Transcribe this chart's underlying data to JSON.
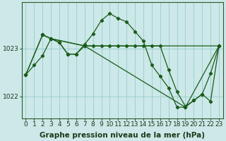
{
  "background_color": "#cce8e8",
  "grid_color": "#99cccc",
  "line_color": "#1a5c1a",
  "xlabel": "Graphe pression niveau de la mer (hPa)",
  "xlabel_fontsize": 7.5,
  "tick_fontsize": 6.5,
  "ylabel_ticks": [
    1022,
    1023
  ],
  "xlim": [
    -0.5,
    23.5
  ],
  "ylim": [
    1021.55,
    1023.95
  ],
  "xticks": [
    0,
    1,
    2,
    3,
    4,
    5,
    6,
    7,
    8,
    9,
    10,
    11,
    12,
    13,
    14,
    15,
    16,
    17,
    18,
    19,
    20,
    21,
    22,
    23
  ],
  "line1_x": [
    0,
    1,
    2,
    3,
    4,
    5,
    6,
    7,
    8,
    9,
    10,
    11,
    12,
    13,
    14,
    15,
    16,
    17,
    18,
    19,
    20,
    21,
    22,
    23
  ],
  "line1_y": [
    1022.45,
    1022.65,
    1022.85,
    1023.2,
    1023.12,
    1022.88,
    1022.88,
    1023.08,
    1023.3,
    1023.58,
    1023.72,
    1023.62,
    1023.55,
    1023.35,
    1023.15,
    1022.65,
    1022.42,
    1022.18,
    1021.78,
    1021.78,
    1021.92,
    1022.05,
    1022.48,
    1023.05
  ],
  "line2_x": [
    2,
    3,
    4,
    5,
    6,
    7,
    8,
    9,
    10,
    11,
    12,
    13,
    14,
    15,
    16,
    17,
    18,
    19,
    20,
    21,
    22,
    23
  ],
  "line2_y": [
    1023.28,
    1023.2,
    1023.12,
    1022.88,
    1022.88,
    1023.05,
    1023.05,
    1023.05,
    1023.05,
    1023.05,
    1023.05,
    1023.05,
    1023.05,
    1023.05,
    1023.05,
    1022.55,
    1022.1,
    1021.8,
    1021.92,
    1022.05,
    1021.9,
    1023.05
  ],
  "line3_x": [
    0,
    2,
    3,
    7,
    23
  ],
  "line3_y": [
    1022.45,
    1023.28,
    1023.2,
    1023.05,
    1023.05
  ],
  "line4_x": [
    0,
    2,
    3,
    7,
    19,
    23
  ],
  "line4_y": [
    1022.45,
    1023.28,
    1023.2,
    1023.05,
    1021.78,
    1023.05
  ]
}
